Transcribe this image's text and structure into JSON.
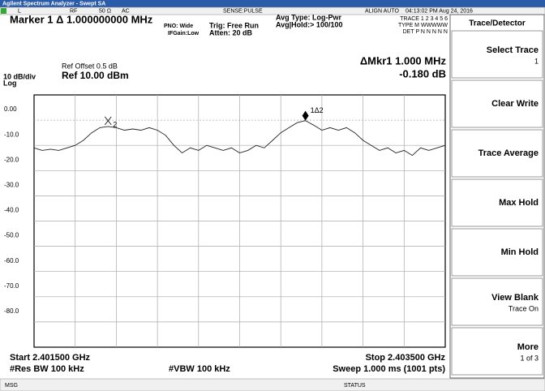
{
  "header": {
    "title": "Agilent Spectrum Analyzer - Swept SA",
    "status": [
      "L",
      "RF",
      "50 Ω",
      "AC",
      "SENSE:PULSE",
      "ALIGN AUTO",
      "04:13:02 PM Aug 24, 2016"
    ],
    "marker": "Marker 1 Δ 1.000000000 MHz",
    "pno": "PNO: Wide",
    "if_gain": "IFGain:Low",
    "trigger": "Trig: Free Run",
    "atten": "Atten: 20 dB",
    "avg_type": "Avg Type: Log-Pwr",
    "avg_hold": "Avg|Hold:> 100/100",
    "trace_row": "TRACE 1 2 3 4 5 6",
    "type_row": "TYPE M WWWWW",
    "det_row": "DET P N N N N N"
  },
  "plot": {
    "ref_offset": "Ref Offset 0.5 dB",
    "scale": "10 dB/div",
    "ref_level": "Ref 10.00 dBm",
    "log": "Log",
    "delta_marker": "ΔMkr1 1.000 MHz",
    "delta_value": "-0.180 dB",
    "start": "Start 2.401500 GHz",
    "stop": "Stop 2.403500 GHz",
    "res_bw": "#Res BW 100 kHz",
    "vbw": "#VBW 100 kHz",
    "sweep": "Sweep  1.000 ms (1001 pts)",
    "ylim": [
      -90,
      10
    ],
    "yticks": [
      {
        "value": 0,
        "label": "0.00"
      },
      {
        "value": -10,
        "label": "-10.0"
      },
      {
        "value": -20,
        "label": "-20.0"
      },
      {
        "value": -30,
        "label": "-30.0"
      },
      {
        "value": -40,
        "label": "-40.0"
      },
      {
        "value": -50,
        "label": "-50.0"
      },
      {
        "value": -60,
        "label": "-60.0"
      },
      {
        "value": -70,
        "label": "-70.0"
      },
      {
        "value": -80,
        "label": "-80.0"
      }
    ],
    "trace": [
      -11,
      -12,
      -11.5,
      -12,
      -11,
      -10,
      -8,
      -5,
      -3,
      -2.5,
      -3,
      -4,
      -3.5,
      -4,
      -3,
      -4,
      -6,
      -10,
      -13,
      -11,
      -12,
      -10,
      -11,
      -12,
      -11,
      -13,
      -12,
      -10,
      -11,
      -8,
      -5,
      -3,
      -1,
      -0.18,
      -2,
      -4,
      -3,
      -4,
      -3,
      -5,
      -8,
      -10,
      -12,
      -11,
      -13,
      -12,
      -14,
      -11,
      -12,
      -11,
      -10
    ],
    "markers": [
      {
        "label": "1Δ2",
        "index": 33
      },
      {
        "label": "2",
        "index": 9
      }
    ]
  },
  "softkeys": {
    "title": "Trace/Detector",
    "keys": [
      {
        "label": "Select Trace",
        "sub": "1"
      },
      {
        "label": "Clear Write"
      },
      {
        "label": "Trace Average"
      },
      {
        "label": "Max Hold"
      },
      {
        "label": "Min Hold"
      },
      {
        "label": "View Blank",
        "sub": "Trace On"
      },
      {
        "label": "More",
        "sub": "1 of 3"
      }
    ]
  },
  "footer": {
    "msg": "MSG",
    "status": "STATUS"
  }
}
